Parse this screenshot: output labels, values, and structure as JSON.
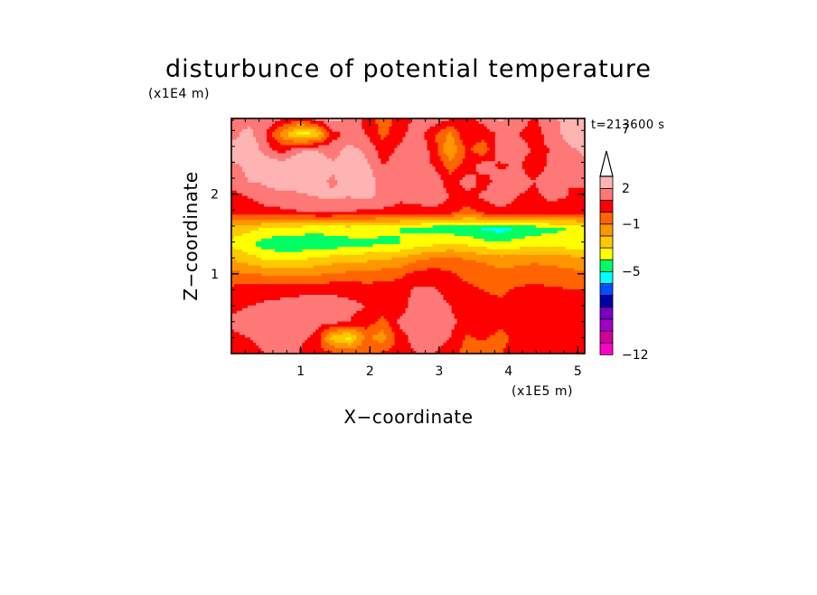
{
  "chart_data": {
    "type": "heatmap",
    "title": "disturbunce of potential temperature",
    "xlabel": "X−coordinate",
    "ylabel": "Z−coordinate",
    "x_unit": "(x1E5 m)",
    "y_unit": "(x1E4 m)",
    "time_label": "t=213600 s",
    "xlim": [
      0,
      5.1
    ],
    "ylim": [
      0,
      2.95
    ],
    "x_ticks": [
      "1",
      "2",
      "3",
      "4",
      "5"
    ],
    "y_ticks": [
      "1",
      "2"
    ],
    "x_tick_values": [
      1,
      2,
      3,
      4,
      5
    ],
    "y_tick_values": [
      1,
      2
    ],
    "colorbar": {
      "tick_labels": [
        "7",
        "2",
        "−1",
        "−5",
        "−12"
      ],
      "colors": [
        "#ff00c8",
        "#d2009b",
        "#a000c8",
        "#7800c8",
        "#0000aa",
        "#0050ff",
        "#00ffff",
        "#00ff64",
        "#ffff00",
        "#ffc800",
        "#ff9600",
        "#ff6400",
        "#ff0000",
        "#ff7878",
        "#ffb4b4"
      ],
      "extend_top": true
    },
    "field": [
      [
        0.8,
        1.5,
        2.0,
        1.2,
        0.5,
        1.5,
        2.5,
        1.8,
        0.6,
        -0.5,
        0.4,
        1.3,
        1.8,
        1.2,
        0.5,
        1.4,
        2.2,
        1.5,
        0.9,
        1.6,
        2.5,
        2.0
      ],
      [
        1.5,
        2.5,
        1.0,
        -1.5,
        -3.5,
        -3.2,
        0.5,
        1.5,
        1.0,
        -0.3,
        0.6,
        1.6,
        0.2,
        -1.2,
        1.0,
        0.4,
        1.3,
        1.0,
        0.6,
        1.4,
        2.4,
        2.5
      ],
      [
        2.5,
        3.0,
        1.5,
        0.5,
        1.8,
        2.0,
        1.5,
        2.3,
        1.8,
        0.5,
        1.2,
        2.0,
        0.6,
        -2.0,
        0.2,
        -0.8,
        1.8,
        1.4,
        0.9,
        1.0,
        1.8,
        2.2
      ],
      [
        1.8,
        2.2,
        3.0,
        2.5,
        3.2,
        2.8,
        2.2,
        2.8,
        2.2,
        1.0,
        1.5,
        1.2,
        1.0,
        -0.5,
        0.3,
        1.5,
        0.8,
        1.2,
        0.5,
        1.2,
        1.5,
        1.8
      ],
      [
        1.5,
        2.0,
        2.2,
        2.8,
        2.5,
        2.5,
        1.8,
        2.5,
        2.8,
        1.5,
        1.8,
        1.0,
        1.8,
        0.4,
        1.5,
        0.6,
        1.5,
        1.3,
        1.0,
        1.5,
        1.0,
        1.2
      ],
      [
        0.5,
        1.0,
        1.5,
        1.5,
        1.8,
        2.0,
        2.2,
        2.0,
        2.2,
        1.8,
        1.2,
        1.5,
        1.8,
        1.0,
        0.6,
        1.2,
        1.8,
        1.0,
        0.8,
        1.2,
        1.0,
        0.8
      ],
      [
        0.2,
        0.4,
        0.6,
        0.8,
        0.9,
        1.0,
        1.0,
        0.9,
        0.8,
        0.7,
        0.6,
        0.5,
        0.5,
        0.3,
        -0.5,
        0.3,
        0.5,
        0.6,
        0.5,
        0.6,
        0.5,
        0.4
      ],
      [
        -2.5,
        -2.7,
        -3.0,
        -3.2,
        -3.4,
        -3.5,
        -3.5,
        -3.4,
        -3.5,
        -3.8,
        -4.0,
        -4.2,
        -4.5,
        -4.6,
        -4.8,
        -5.2,
        -5.5,
        -4.8,
        -4.5,
        -4.3,
        -4.0,
        -3.8
      ],
      [
        -3.2,
        -3.8,
        -4.5,
        -4.8,
        -4.8,
        -4.8,
        -4.6,
        -4.4,
        -4.2,
        -4.2,
        -4.0,
        -3.5,
        -3.2,
        -3.0,
        -3.2,
        -3.6,
        -3.8,
        -3.6,
        -3.4,
        -3.4,
        -3.6,
        -3.8
      ],
      [
        -2.0,
        -2.5,
        -3.0,
        -3.2,
        -3.0,
        -2.8,
        -2.5,
        -2.4,
        -2.2,
        -2.0,
        -1.8,
        -1.2,
        -0.8,
        -0.6,
        -1.0,
        -1.2,
        -1.5,
        -1.4,
        -1.2,
        -1.3,
        -1.5,
        -1.8
      ],
      [
        -0.6,
        -0.8,
        -1.0,
        -1.2,
        -1.2,
        -1.0,
        -0.8,
        -0.6,
        -0.6,
        -0.4,
        -0.2,
        0.4,
        0.6,
        0.2,
        -0.2,
        -0.4,
        -0.6,
        -0.5,
        -0.4,
        -0.5,
        -0.6,
        -0.7
      ],
      [
        0.3,
        0.5,
        0.6,
        0.7,
        0.8,
        0.9,
        0.9,
        0.8,
        0.6,
        0.5,
        0.6,
        1.2,
        1.2,
        0.5,
        0.2,
        0.0,
        -0.2,
        0.2,
        0.3,
        0.2,
        0.1,
        0.0
      ],
      [
        0.8,
        1.0,
        1.2,
        1.3,
        1.4,
        1.4,
        1.3,
        1.2,
        1.0,
        0.8,
        0.5,
        1.5,
        1.8,
        1.0,
        0.5,
        0.6,
        0.2,
        0.5,
        0.6,
        0.5,
        0.4,
        0.3
      ],
      [
        1.2,
        1.4,
        1.5,
        1.6,
        1.5,
        1.4,
        1.2,
        1.0,
        0.6,
        -0.5,
        1.2,
        2.0,
        1.8,
        1.2,
        0.8,
        0.8,
        0.4,
        0.8,
        0.8,
        0.7,
        0.6,
        0.5
      ],
      [
        0.8,
        1.0,
        1.2,
        1.5,
        1.2,
        0.8,
        -2.5,
        -3.5,
        -0.8,
        -1.5,
        0.5,
        1.5,
        1.5,
        1.0,
        -0.2,
        0.2,
        -0.5,
        0.5,
        0.6,
        0.8,
        0.5,
        0.6
      ],
      [
        0.5,
        0.8,
        1.0,
        1.2,
        1.0,
        0.5,
        0.2,
        0.0,
        -0.2,
        0.2,
        0.5,
        1.0,
        1.0,
        0.5,
        -0.5,
        -0.8,
        0.0,
        0.4,
        0.5,
        0.6,
        0.8,
        1.0
      ]
    ]
  }
}
